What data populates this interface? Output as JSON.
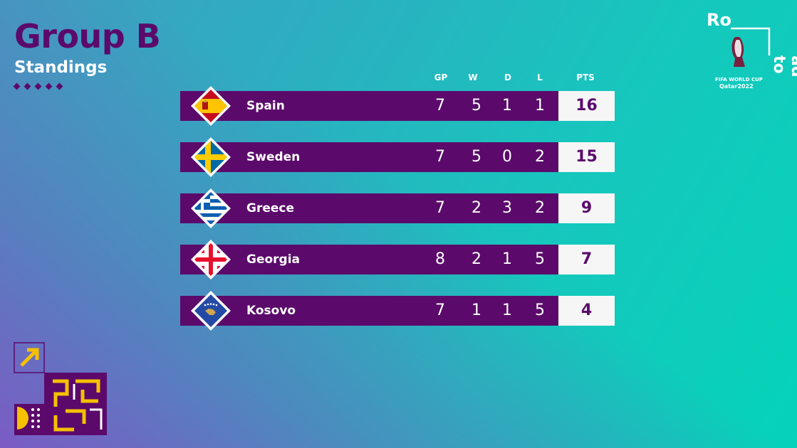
{
  "header": {
    "title": "Group B",
    "subtitle": "Standings"
  },
  "columns": {
    "gp": "GP",
    "w": "W",
    "d": "D",
    "l": "L",
    "pts": "PTS"
  },
  "teams": [
    {
      "name": "Spain",
      "gp": "7",
      "w": "5",
      "d": "1",
      "l": "1",
      "pts": "16",
      "flag_icon": "spain-flag-icon"
    },
    {
      "name": "Sweden",
      "gp": "7",
      "w": "5",
      "d": "0",
      "l": "2",
      "pts": "15",
      "flag_icon": "sweden-flag-icon"
    },
    {
      "name": "Greece",
      "gp": "7",
      "w": "2",
      "d": "3",
      "l": "2",
      "pts": "9",
      "flag_icon": "greece-flag-icon"
    },
    {
      "name": "Georgia",
      "gp": "8",
      "w": "2",
      "d": "1",
      "l": "5",
      "pts": "7",
      "flag_icon": "georgia-flag-icon"
    },
    {
      "name": "Kosovo",
      "gp": "7",
      "w": "1",
      "d": "1",
      "l": "5",
      "pts": "4",
      "flag_icon": "kosovo-flag-icon"
    }
  ],
  "branding": {
    "word_top": "Ro",
    "word_side": "ad to",
    "event_line1": "FIFA WORLD CUP",
    "event_line2": "Qatar2022"
  },
  "colors": {
    "purple": "#5b0a6b",
    "teal": "#05d3b9",
    "pts_background": "#f6f6f7",
    "accent_yellow": "#f5c000"
  }
}
